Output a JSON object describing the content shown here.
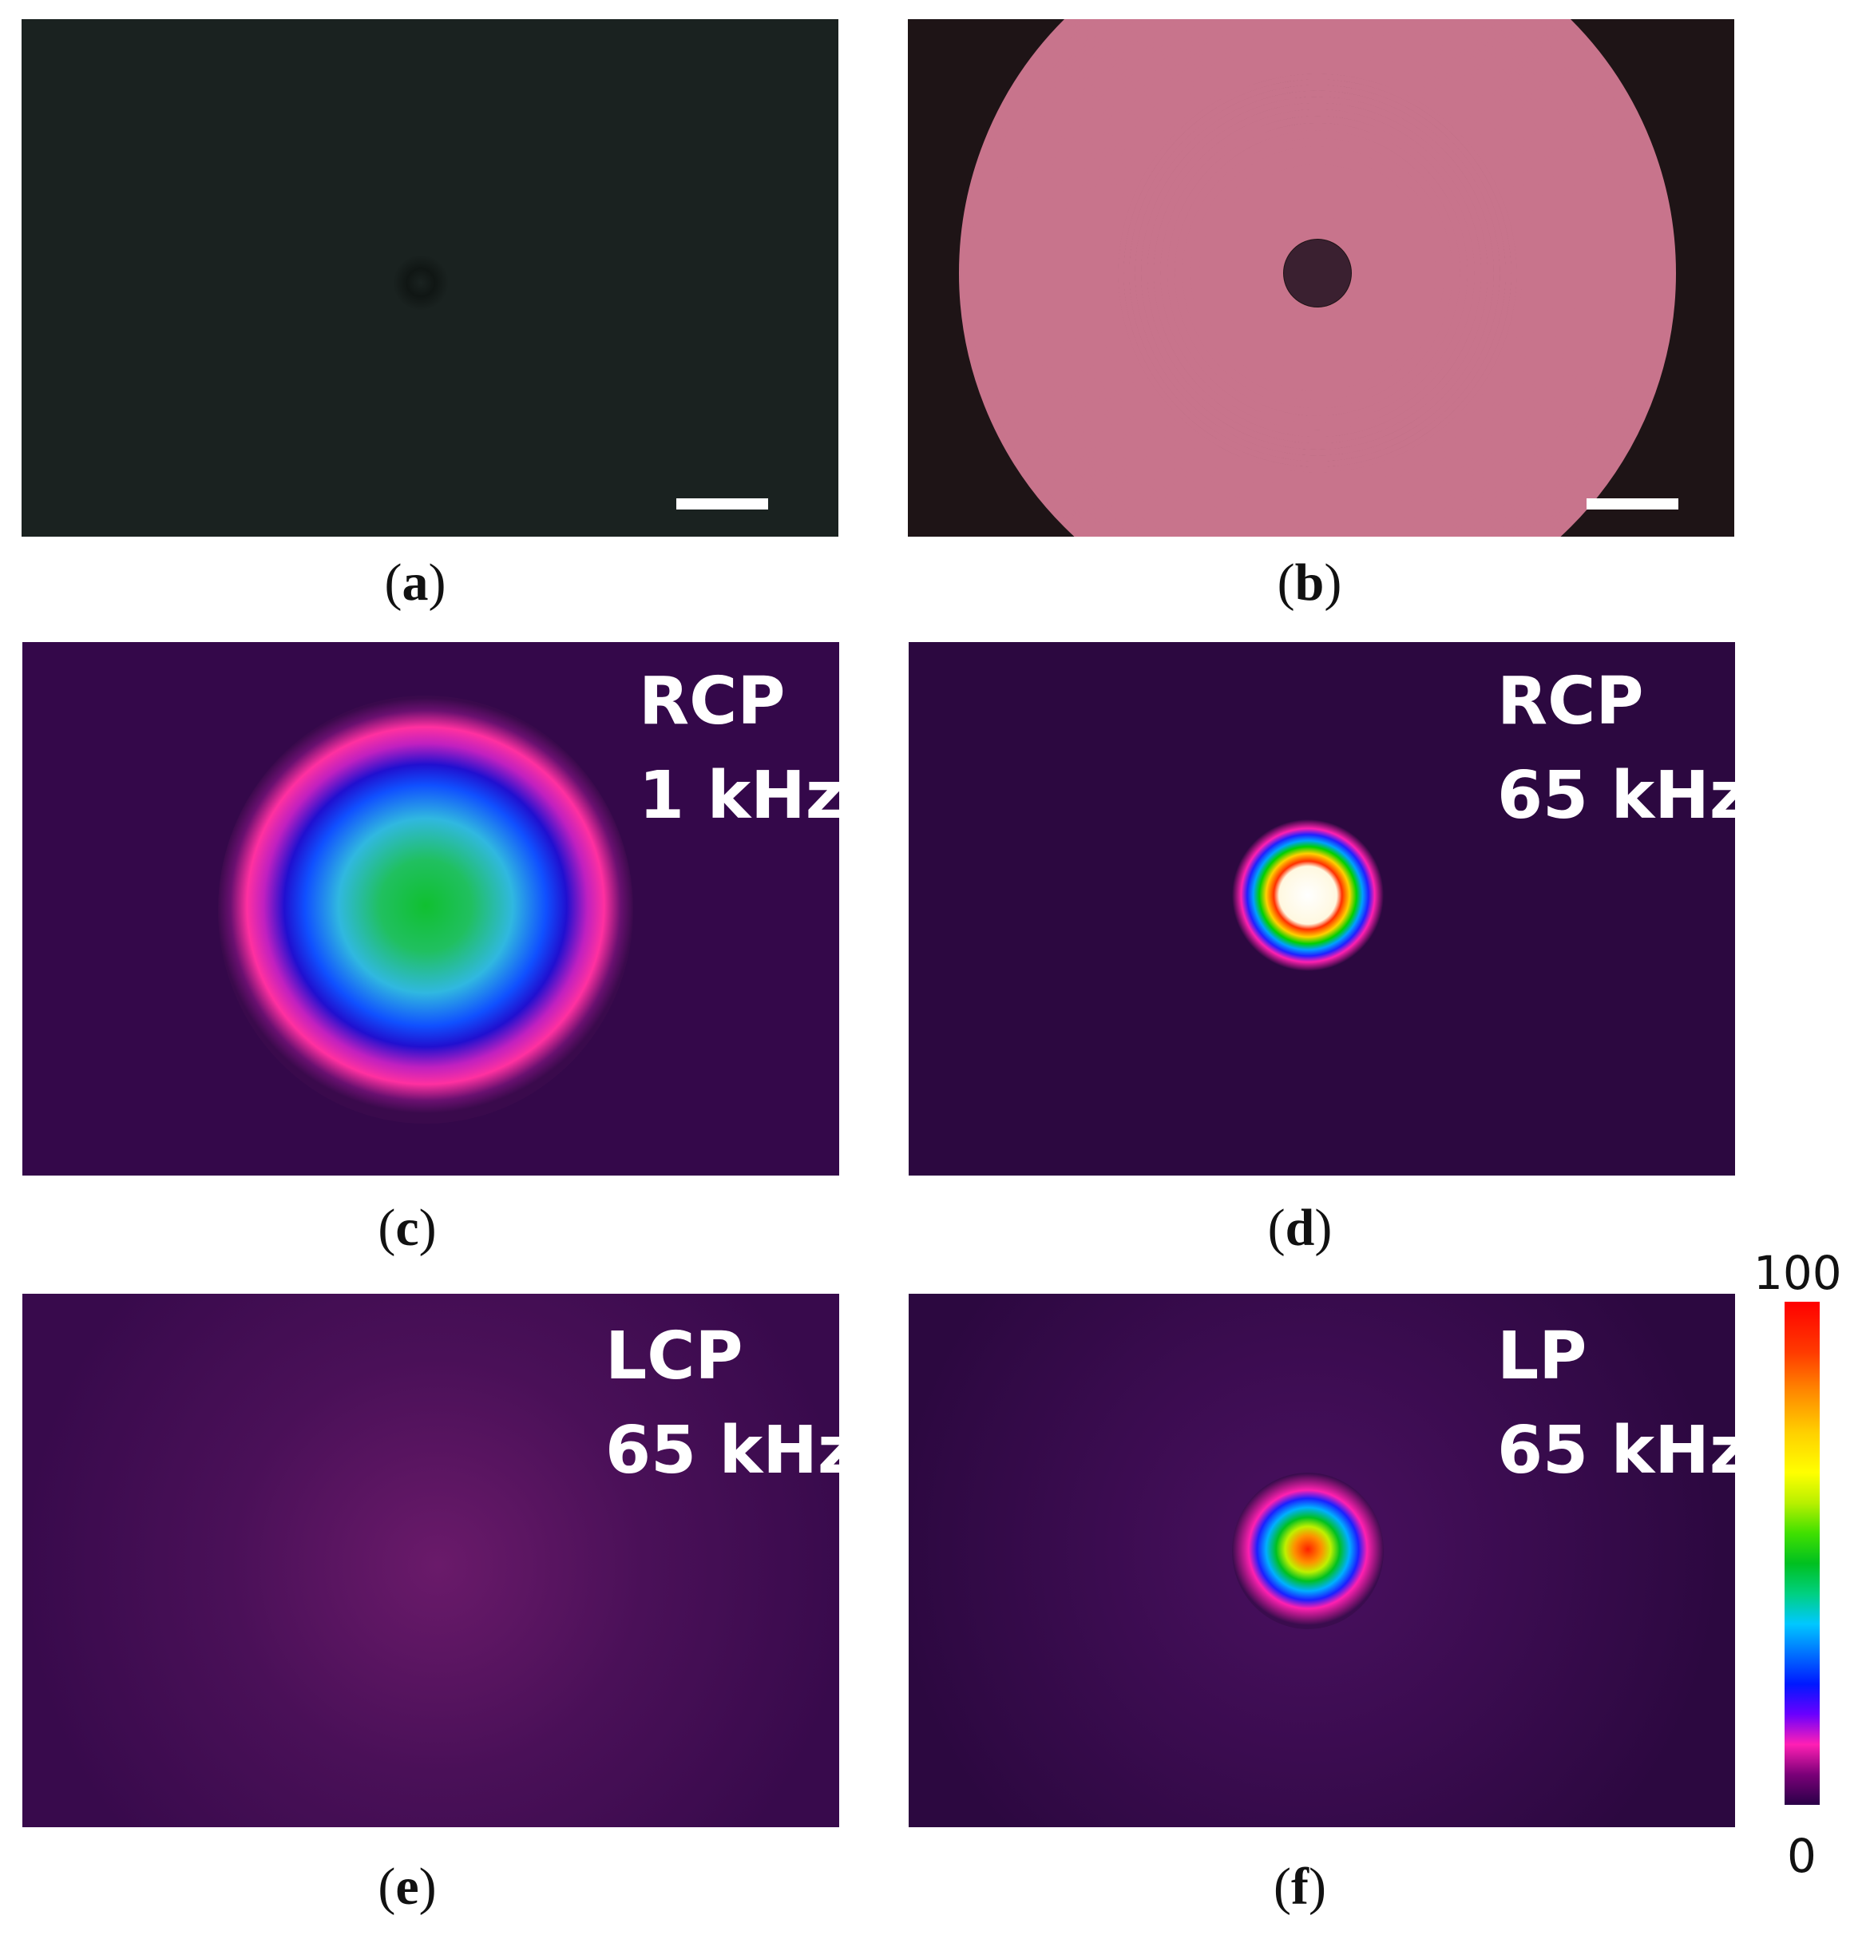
{
  "panels": [
    {
      "id": "a",
      "caption_letter": "a",
      "label_line1": "",
      "label_line2": ""
    },
    {
      "id": "b",
      "caption_letter": "b",
      "label_line1": "",
      "label_line2": ""
    },
    {
      "id": "c",
      "caption_letter": "c",
      "label_line1": "RCP",
      "label_line2": "1 kHz"
    },
    {
      "id": "d",
      "caption_letter": "d",
      "label_line1": "RCP",
      "label_line2": "65 kHz"
    },
    {
      "id": "e",
      "caption_letter": "e",
      "label_line1": "LCP",
      "label_line2": "65 kHz"
    },
    {
      "id": "f",
      "caption_letter": "f",
      "label_line1": "LP",
      "label_line2": "65 kHz"
    }
  ],
  "colorbar": {
    "max_label": "100",
    "min_label": "0"
  },
  "colors": {
    "ring_pink": "#c8748c",
    "ring_dark": "#1e1416",
    "bg_purple": "#2c0840",
    "dark_green": "#141c1a"
  }
}
